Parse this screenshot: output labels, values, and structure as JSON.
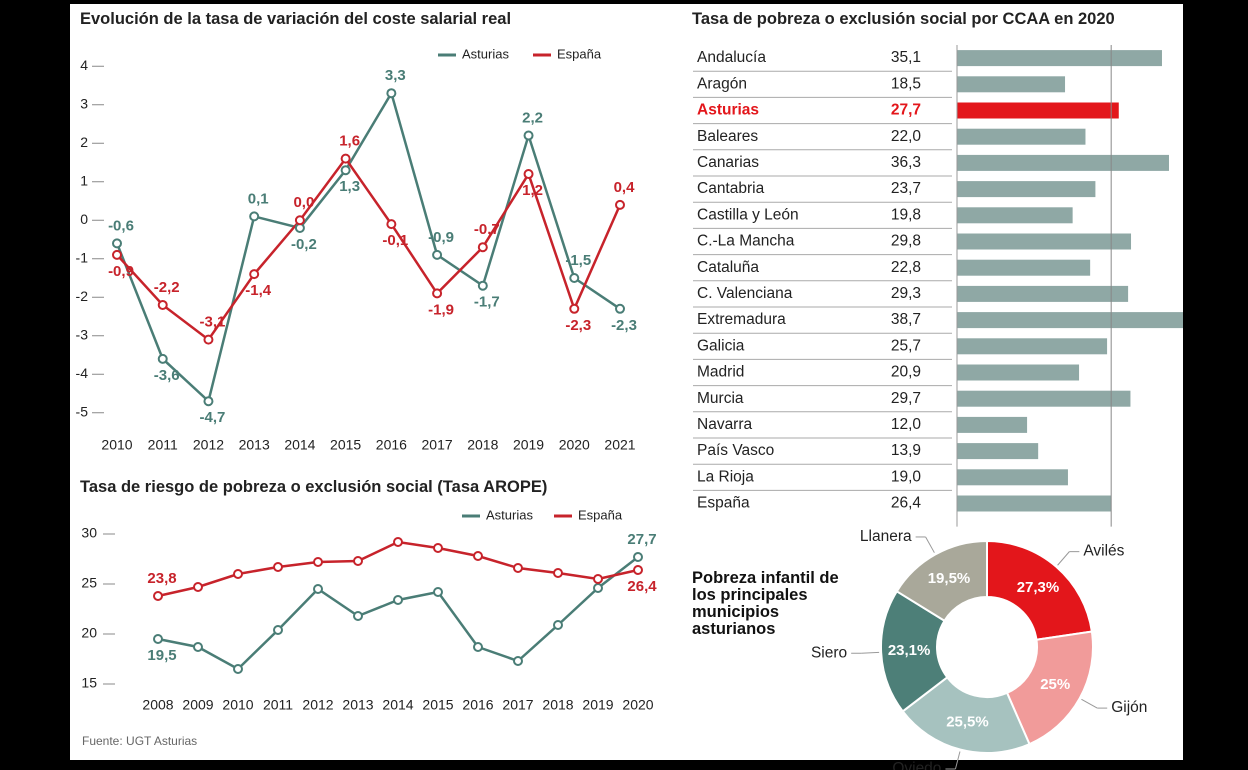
{
  "chart_data": [
    {
      "type": "line",
      "title": "Evolución de la tasa de variación del coste salarial real",
      "x": [
        2010,
        2011,
        2012,
        2013,
        2014,
        2015,
        2016,
        2017,
        2018,
        2019,
        2020,
        2021
      ],
      "xlim": [
        2010,
        2021
      ],
      "ylim": [
        -5.5,
        4.5
      ],
      "yticks": [
        -5,
        -4,
        -3,
        -2,
        -1,
        0,
        1,
        2,
        3,
        4
      ],
      "grid": false,
      "legend": "top-right",
      "series": [
        {
          "name": "Asturias",
          "color": "#4a7d76",
          "values": [
            -0.6,
            -3.6,
            -4.7,
            0.1,
            -0.2,
            1.3,
            3.3,
            -0.9,
            -1.7,
            2.2,
            -1.5,
            -2.3
          ],
          "value_labels": [
            "-0,6",
            "-3,6",
            "-4,7",
            "0,1",
            "-0,2",
            "1,3",
            "3,3",
            "-0,9",
            "-1,7",
            "2,2",
            "-1,5",
            "-2,3"
          ]
        },
        {
          "name": "España",
          "color": "#c7232b",
          "values": [
            -0.9,
            -2.2,
            -3.1,
            -1.4,
            0.0,
            1.6,
            -0.1,
            -1.9,
            -0.7,
            1.2,
            -2.3,
            0.4
          ],
          "value_labels": [
            "-0,9",
            "-2,2",
            "-3,1",
            "-1,4",
            "0,0",
            "1,6",
            "-0,1",
            "-1,9",
            "-0,7",
            "1,2",
            "-2,3",
            "0,4"
          ]
        }
      ]
    },
    {
      "type": "line",
      "title": "Tasa de riesgo de pobreza o exclusión social (Tasa AROPE)",
      "x": [
        2008,
        2009,
        2010,
        2011,
        2012,
        2013,
        2014,
        2015,
        2016,
        2017,
        2018,
        2019,
        2020
      ],
      "xlim": [
        2008,
        2020
      ],
      "ylim": [
        13,
        31
      ],
      "yticks": [
        15,
        20,
        25,
        30
      ],
      "grid": false,
      "legend": "top-right",
      "source": "Fuente: UGT Asturias",
      "series": [
        {
          "name": "Asturias",
          "color": "#4a7d76",
          "values": [
            19.5,
            18.7,
            16.5,
            20.4,
            24.5,
            21.8,
            23.4,
            24.2,
            18.7,
            17.3,
            20.9,
            24.6,
            27.7
          ],
          "value_labels": [
            "19,5",
            null,
            null,
            null,
            null,
            null,
            null,
            null,
            null,
            null,
            null,
            null,
            "27,7"
          ]
        },
        {
          "name": "España",
          "color": "#c7232b",
          "values": [
            23.8,
            24.7,
            26.0,
            26.7,
            27.2,
            27.3,
            29.2,
            28.6,
            27.8,
            26.6,
            26.1,
            25.5,
            26.4
          ],
          "value_labels": [
            "23,8",
            null,
            null,
            null,
            null,
            null,
            null,
            null,
            null,
            null,
            null,
            null,
            "26,4"
          ]
        }
      ]
    },
    {
      "type": "hbar",
      "title": "Tasa de pobreza o exclusión social por CCAA en 2020",
      "categories": [
        "Andalucía",
        "Aragón",
        "Asturias",
        "Baleares",
        "Canarias",
        "Cantabria",
        "Castilla y León",
        "C.-La Mancha",
        "Cataluña",
        "C. Valenciana",
        "Extremadura",
        "Galicia",
        "Madrid",
        "Murcia",
        "Navarra",
        "País Vasco",
        "La Rioja",
        "España"
      ],
      "values": [
        35.1,
        18.5,
        27.7,
        22.0,
        36.3,
        23.7,
        19.8,
        29.8,
        22.8,
        29.3,
        38.7,
        25.7,
        20.9,
        29.7,
        12.0,
        13.9,
        19.0,
        26.4
      ],
      "value_labels": [
        "35,1",
        "18,5",
        "27,7",
        "22,0",
        "36,3",
        "23,7",
        "19,8",
        "29,8",
        "22,8",
        "29,3",
        "38,7",
        "25,7",
        "20,9",
        "29,7",
        "12,0",
        "13,9",
        "19,0",
        "26,4"
      ],
      "colors": [
        "#8fa8a5",
        "#8fa8a5",
        "#e3161b",
        "#8fa8a5",
        "#8fa8a5",
        "#8fa8a5",
        "#8fa8a5",
        "#8fa8a5",
        "#8fa8a5",
        "#8fa8a5",
        "#8fa8a5",
        "#8fa8a5",
        "#8fa8a5",
        "#8fa8a5",
        "#8fa8a5",
        "#8fa8a5",
        "#8fa8a5",
        "#8fa8a5"
      ],
      "highlight_color": "#e3161b",
      "xlim": [
        0,
        38.7
      ],
      "reference_line": true
    },
    {
      "type": "donut",
      "title": "Pobreza infantil de los principales municipios asturianos",
      "categories": [
        "Avilés",
        "Gijón",
        "Oviedo",
        "Siero",
        "Llanera"
      ],
      "values": [
        27.3,
        25,
        25.5,
        23.1,
        19.5
      ],
      "value_labels": [
        "27,3%",
        "25%",
        "25,5%",
        "23,1%",
        "19,5%"
      ],
      "colors": [
        "#e3161b",
        "#f19b9a",
        "#a6c2bf",
        "#4d7f78",
        "#a9a89a"
      ]
    }
  ]
}
